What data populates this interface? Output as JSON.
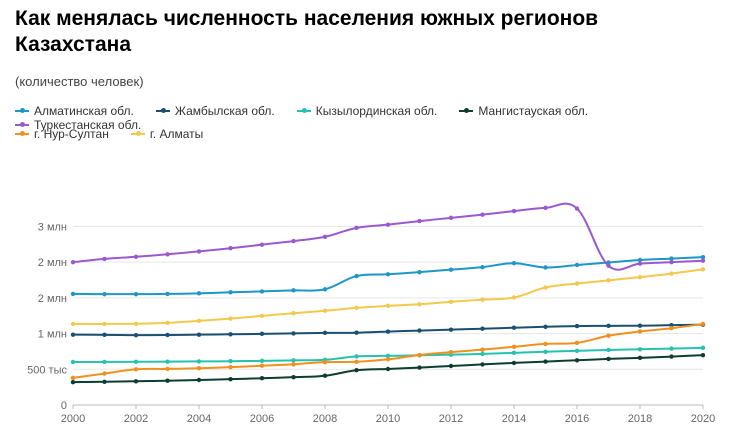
{
  "title": "Как менялась численность населения южных регионов Казахстана",
  "subtitle": "(количество человек)",
  "chart_data": {
    "type": "line",
    "title": "Как менялась численность населения южных регионов Казахстана",
    "subtitle": "(количество человек)",
    "xlabel": "",
    "ylabel": "",
    "x": [
      2000,
      2001,
      2002,
      2003,
      2004,
      2005,
      2006,
      2007,
      2008,
      2009,
      2010,
      2011,
      2012,
      2013,
      2014,
      2015,
      2016,
      2017,
      2018,
      2019,
      2020
    ],
    "xlim": [
      2000,
      2020
    ],
    "ylim": [
      0,
      3500000
    ],
    "x_ticks": [
      "2000",
      "2002",
      "2004",
      "2006",
      "2008",
      "2010",
      "2012",
      "2014",
      "2016",
      "2018",
      "2020"
    ],
    "x_tick_values": [
      2000,
      2002,
      2004,
      2006,
      2008,
      2010,
      2012,
      2014,
      2016,
      2018,
      2020
    ],
    "y_ticks": [
      "0",
      "500 тыс",
      "1 млн",
      "2 млн",
      "2 млн",
      "3 млн"
    ],
    "y_tick_values": [
      0,
      500000,
      1000000,
      1500000,
      2000000,
      2500000
    ],
    "grid": true,
    "legend_position": "top-left",
    "series": [
      {
        "name": "Алматинская обл.",
        "color": "#1f96c8",
        "values": [
          1555000,
          1552000,
          1552000,
          1555000,
          1563000,
          1578000,
          1590000,
          1605000,
          1620000,
          1805000,
          1830000,
          1860000,
          1895000,
          1930000,
          1985000,
          1925000,
          1960000,
          1995000,
          2030000,
          2050000,
          2070000
        ]
      },
      {
        "name": "Жамбылская обл.",
        "color": "#1b4f72",
        "values": [
          985000,
          982000,
          978000,
          980000,
          985000,
          990000,
          996000,
          1002000,
          1010000,
          1012000,
          1028000,
          1042000,
          1055000,
          1068000,
          1082000,
          1095000,
          1105000,
          1108000,
          1110000,
          1118000,
          1125000
        ]
      },
      {
        "name": "Кызылординская обл.",
        "color": "#26c2b0",
        "values": [
          602000,
          603000,
          605000,
          607000,
          610000,
          613000,
          618000,
          625000,
          633000,
          680000,
          688000,
          696000,
          705000,
          715000,
          730000,
          745000,
          758000,
          770000,
          780000,
          790000,
          800000
        ]
      },
      {
        "name": "Мангистауская обл.",
        "color": "#0d3d30",
        "values": [
          320000,
          325000,
          332000,
          340000,
          350000,
          362000,
          375000,
          390000,
          410000,
          487000,
          504000,
          524000,
          546000,
          568000,
          589000,
          608000,
          626000,
          645000,
          660000,
          678000,
          698000
        ]
      },
      {
        "name": "Туркестанская обл.",
        "color": "#9b59d0",
        "values": [
          2000000,
          2045000,
          2075000,
          2110000,
          2150000,
          2195000,
          2245000,
          2295000,
          2355000,
          2480000,
          2525000,
          2575000,
          2620000,
          2665000,
          2715000,
          2760000,
          2750000,
          1950000,
          1980000,
          2000000,
          2020000
        ]
      },
      {
        "name": "г. Нур-Султан",
        "color": "#f0901e",
        "values": [
          380000,
          440000,
          500000,
          505000,
          515000,
          530000,
          550000,
          570000,
          600000,
          605000,
          640000,
          700000,
          740000,
          775000,
          815000,
          855000,
          870000,
          970000,
          1030000,
          1075000,
          1135000
        ]
      },
      {
        "name": "г. Алматы",
        "color": "#f2c94c",
        "values": [
          1135000,
          1135000,
          1137000,
          1150000,
          1178000,
          1210000,
          1248000,
          1285000,
          1320000,
          1360000,
          1388000,
          1410000,
          1445000,
          1475000,
          1505000,
          1645000,
          1700000,
          1745000,
          1790000,
          1840000,
          1900000
        ]
      }
    ]
  }
}
